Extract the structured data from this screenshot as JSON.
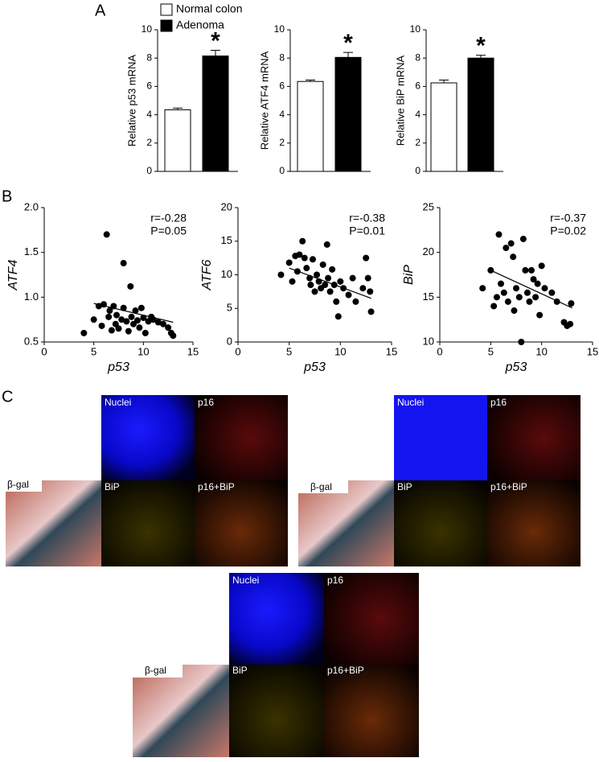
{
  "panel_labels": [
    "A",
    "B",
    "C"
  ],
  "chart_data": [
    {
      "type": "bar",
      "y_label": "Relative p53 mRNA",
      "categories": [
        "Normal colon",
        "Adenoma"
      ],
      "values": [
        4.35,
        8.15
      ],
      "errors": [
        0.12,
        0.4
      ],
      "colors": [
        "#ffffff",
        "#000000"
      ],
      "ylim": [
        0,
        10
      ],
      "yticks": [
        0,
        2,
        4,
        6,
        8,
        10
      ],
      "annotation": "*"
    },
    {
      "type": "bar",
      "y_label": "Relative ATF4 mRNA",
      "values": [
        6.35,
        8.05
      ],
      "errors": [
        0.1,
        0.35
      ],
      "colors": [
        "#ffffff",
        "#000000"
      ],
      "ylim": [
        0,
        10
      ],
      "yticks": [
        0,
        2,
        4,
        6,
        8,
        10
      ],
      "annotation": "*"
    },
    {
      "type": "bar",
      "y_label": "Relative BiP mRNA",
      "values": [
        6.25,
        8.0
      ],
      "errors": [
        0.2,
        0.2
      ],
      "colors": [
        "#ffffff",
        "#000000"
      ],
      "ylim": [
        0,
        10
      ],
      "yticks": [
        0,
        2,
        4,
        6,
        8,
        10
      ],
      "annotation": "*"
    },
    {
      "type": "scatter",
      "x_label": "p53",
      "y_label": "ATF4",
      "color": "#000000",
      "x": [
        4.0,
        5.0,
        5.5,
        5.8,
        6.0,
        6.3,
        6.5,
        6.6,
        6.8,
        7.0,
        7.2,
        7.3,
        7.5,
        7.8,
        8.0,
        8.0,
        8.3,
        8.5,
        8.7,
        8.8,
        9.0,
        9.2,
        9.4,
        9.6,
        9.8,
        10.0,
        10.2,
        10.5,
        10.8,
        11.0,
        11.5,
        12.0,
        12.5,
        12.8,
        13.0
      ],
      "y": [
        0.6,
        0.75,
        0.9,
        0.68,
        0.92,
        1.7,
        0.78,
        0.85,
        0.63,
        0.9,
        0.7,
        0.8,
        0.65,
        0.75,
        1.38,
        0.88,
        0.73,
        0.62,
        1.12,
        0.78,
        0.7,
        0.85,
        0.74,
        0.66,
        0.88,
        0.77,
        0.6,
        0.73,
        0.78,
        0.75,
        0.72,
        0.7,
        0.66,
        0.6,
        0.57
      ],
      "trend_line": {
        "x": [
          5,
          13
        ],
        "y": [
          0.93,
          0.72
        ]
      },
      "xlim": [
        0,
        15
      ],
      "xticks": [
        0,
        5,
        10,
        15
      ],
      "ylim": [
        0.5,
        2.0
      ],
      "yticks": [
        0.5,
        {
          "value": 1.0,
          "label": "1.0"
        },
        1.5,
        {
          "value": 2.0,
          "label": "2.0"
        }
      ],
      "annotations": [
        "r=-0.28",
        "P=0.05"
      ]
    },
    {
      "type": "scatter",
      "x_label": "p53",
      "y_label": "ATF6",
      "color": "#000000",
      "x": [
        4.2,
        5.0,
        5.3,
        5.6,
        5.8,
        6.0,
        6.3,
        6.5,
        6.7,
        7.0,
        7.1,
        7.3,
        7.5,
        7.7,
        7.9,
        8.1,
        8.3,
        8.5,
        8.7,
        8.8,
        9.0,
        9.2,
        9.4,
        9.6,
        9.8,
        10.0,
        10.3,
        10.8,
        11.2,
        11.5,
        12.2,
        12.5,
        12.7,
        13.0,
        12.9
      ],
      "y": [
        10.0,
        11.8,
        9.0,
        12.8,
        10.5,
        13.0,
        15.0,
        12.5,
        11.0,
        9.5,
        8.5,
        12.3,
        7.5,
        10.0,
        9.0,
        8.0,
        11.5,
        8.5,
        14.5,
        9.5,
        7.5,
        10.8,
        8.5,
        6.0,
        3.8,
        9.0,
        8.0,
        7.0,
        9.5,
        6.0,
        8.0,
        12.5,
        9.5,
        4.5,
        7.5
      ],
      "trend_line": {
        "x": [
          5,
          13
        ],
        "y": [
          11.0,
          6.5
        ]
      },
      "xlim": [
        0,
        15
      ],
      "xticks": [
        0,
        5,
        10,
        15
      ],
      "ylim": [
        0,
        20
      ],
      "yticks": [
        0,
        5,
        10,
        15,
        20
      ],
      "annotations": [
        "r=-0.38",
        "P=0.01"
      ]
    },
    {
      "type": "scatter",
      "x_label": "p53",
      "y_label": "BiP",
      "color": "#000000",
      "x": [
        4.2,
        5.0,
        5.3,
        5.6,
        5.8,
        6.0,
        6.3,
        6.5,
        6.7,
        7.0,
        7.2,
        7.3,
        7.5,
        7.8,
        8.0,
        8.2,
        8.4,
        8.6,
        8.8,
        9.0,
        9.2,
        9.4,
        9.6,
        9.8,
        10.0,
        10.3,
        11.5,
        12.2,
        12.5,
        12.8,
        12.9,
        11.0
      ],
      "y": [
        16.0,
        18.0,
        14.0,
        15.0,
        22.0,
        16.5,
        15.5,
        20.5,
        14.5,
        21.0,
        19.5,
        13.5,
        16.0,
        15.0,
        10.0,
        21.5,
        18.0,
        15.5,
        14.5,
        18.0,
        17.0,
        15.0,
        16.5,
        13.0,
        18.5,
        16.0,
        14.5,
        12.2,
        11.8,
        12.0,
        14.3,
        15.5
      ],
      "trend_line": {
        "x": [
          5,
          13
        ],
        "y": [
          18.0,
          13.8
        ]
      },
      "xlim": [
        0,
        15
      ],
      "xticks": [
        0,
        5,
        10,
        15
      ],
      "ylim": [
        10,
        25
      ],
      "yticks": [
        10,
        15,
        20,
        25
      ],
      "annotations": [
        "r=-0.37",
        "P=0.02"
      ]
    }
  ],
  "panel_c": [
    {
      "nuclei": "Nuclei",
      "p16": "p16",
      "bgal": "β-gal",
      "bip": "BiP",
      "merge": "p16+BiP"
    },
    {
      "nuclei": "Nuclei",
      "p16": "p16",
      "bgal": "β-gal",
      "bip": "BiP",
      "merge": "p16+BiP"
    },
    {
      "nuclei": "Nuclei",
      "p16": "p16",
      "bgal": "β-gal",
      "bip": "BiP",
      "merge": "p16+BiP"
    }
  ]
}
